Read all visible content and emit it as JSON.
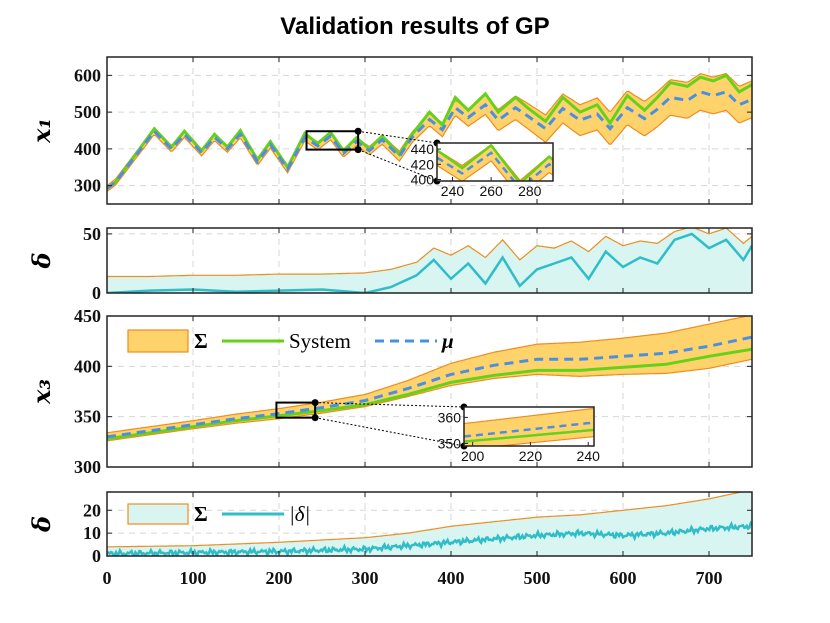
{
  "title": "Validation results of GP",
  "colors": {
    "band_fill": "#ffd36b",
    "band_edge": "#f08c1e",
    "system": "#66d11a",
    "mean": "#4a90e2",
    "delta_fill": "#d8f5f1",
    "delta_line": "#2fbdc8",
    "axis": "#222222",
    "grid": "#d6d6d6"
  },
  "x_axis": {
    "ticks": [
      0,
      100,
      200,
      300,
      400,
      500,
      600,
      700
    ],
    "tick_labels": [
      "0",
      "100",
      "200",
      "300",
      "400",
      "500",
      "600",
      "700"
    ],
    "xlim": [
      0,
      750
    ]
  },
  "chart_data": [
    {
      "type": "area",
      "id": "x1",
      "ylabel": "x₁",
      "ylim": [
        250,
        650
      ],
      "yticks": [
        300,
        400,
        500,
        600
      ],
      "ytick_labels": [
        "300",
        "400",
        "500",
        "600"
      ],
      "series": [
        {
          "name": "System",
          "x": [
            0,
            10,
            55,
            75,
            90,
            110,
            125,
            140,
            155,
            175,
            190,
            210,
            230,
            245,
            260,
            275,
            290,
            305,
            320,
            340,
            355,
            375,
            390,
            405,
            420,
            440,
            455,
            475,
            490,
            510,
            530,
            550,
            570,
            585,
            605,
            625,
            640,
            655,
            675,
            690,
            705,
            720,
            735,
            750
          ],
          "y": [
            292,
            310,
            455,
            405,
            448,
            395,
            440,
            405,
            450,
            370,
            420,
            350,
            442,
            415,
            445,
            395,
            430,
            400,
            435,
            385,
            440,
            500,
            465,
            540,
            505,
            550,
            500,
            540,
            510,
            475,
            540,
            500,
            520,
            470,
            545,
            505,
            540,
            580,
            570,
            595,
            585,
            600,
            555,
            575
          ]
        },
        {
          "name": "μ",
          "x": [
            0,
            10,
            55,
            75,
            90,
            110,
            125,
            140,
            155,
            175,
            190,
            210,
            230,
            245,
            260,
            275,
            290,
            305,
            320,
            340,
            355,
            375,
            390,
            405,
            420,
            440,
            455,
            475,
            490,
            510,
            530,
            550,
            570,
            585,
            605,
            625,
            640,
            655,
            675,
            690,
            705,
            720,
            735,
            750
          ],
          "y": [
            292,
            310,
            448,
            400,
            440,
            390,
            432,
            400,
            440,
            365,
            412,
            345,
            432,
            408,
            435,
            388,
            420,
            395,
            425,
            380,
            432,
            480,
            452,
            512,
            485,
            520,
            478,
            512,
            488,
            455,
            510,
            478,
            495,
            455,
            512,
            482,
            508,
            540,
            532,
            555,
            545,
            555,
            520,
            535
          ]
        }
      ],
      "band": {
        "name": "Σ",
        "x": [
          0,
          100,
          200,
          300,
          350,
          400,
          450,
          500,
          550,
          600,
          650,
          700,
          750
        ],
        "halfwidth": [
          8,
          9,
          10,
          11,
          14,
          20,
          28,
          36,
          42,
          46,
          48,
          50,
          50
        ]
      },
      "inset": {
        "xlim": [
          232,
          292
        ],
        "ylim": [
          398,
          448
        ],
        "xticks": [
          240,
          260,
          280
        ],
        "xtick_labels": [
          "240",
          "260",
          "280"
        ],
        "yticks": [
          400,
          420,
          440
        ],
        "ytick_labels": [
          "400",
          "420",
          "440"
        ]
      }
    },
    {
      "type": "area",
      "id": "delta1",
      "ylabel": "δ",
      "ylim": [
        0,
        55
      ],
      "yticks": [
        0,
        50
      ],
      "ytick_labels": [
        "0",
        "50"
      ],
      "series": [
        {
          "name": "Σ",
          "x": [
            0,
            50,
            100,
            150,
            200,
            250,
            300,
            330,
            360,
            380,
            400,
            420,
            440,
            460,
            480,
            500,
            520,
            540,
            560,
            580,
            600,
            620,
            640,
            660,
            680,
            700,
            720,
            740,
            750
          ],
          "y": [
            14,
            14,
            15,
            15,
            16,
            16,
            17,
            20,
            26,
            38,
            32,
            40,
            30,
            45,
            28,
            40,
            38,
            44,
            35,
            48,
            40,
            44,
            42,
            52,
            56,
            50,
            55,
            42,
            48
          ]
        },
        {
          "name": "|δ|",
          "x": [
            0,
            50,
            100,
            150,
            200,
            250,
            300,
            330,
            360,
            380,
            400,
            420,
            440,
            460,
            480,
            500,
            520,
            540,
            560,
            580,
            600,
            620,
            640,
            660,
            680,
            700,
            720,
            740,
            750
          ],
          "y": [
            0,
            2,
            3,
            1,
            2,
            3,
            0,
            5,
            15,
            28,
            12,
            25,
            8,
            30,
            6,
            20,
            25,
            30,
            12,
            35,
            22,
            30,
            25,
            45,
            50,
            38,
            45,
            28,
            40
          ]
        }
      ]
    },
    {
      "type": "area",
      "id": "x3",
      "ylabel": "x₃",
      "ylim": [
        300,
        450
      ],
      "yticks": [
        300,
        350,
        400,
        450
      ],
      "ytick_labels": [
        "300",
        "350",
        "400",
        "450"
      ],
      "series": [
        {
          "name": "System",
          "x": [
            0,
            50,
            100,
            150,
            200,
            250,
            300,
            350,
            400,
            450,
            500,
            550,
            600,
            650,
            700,
            750
          ],
          "y": [
            328,
            334,
            340,
            346,
            351,
            356,
            362,
            372,
            384,
            391,
            396,
            396,
            399,
            402,
            410,
            417
          ]
        },
        {
          "name": "μ",
          "x": [
            0,
            50,
            100,
            150,
            200,
            250,
            300,
            350,
            400,
            450,
            500,
            550,
            600,
            650,
            700,
            750
          ],
          "y": [
            330,
            336,
            342,
            348,
            353,
            359,
            366,
            378,
            392,
            401,
            407,
            407,
            410,
            413,
            420,
            429
          ]
        }
      ],
      "band": {
        "name": "Σ",
        "x": [
          0,
          100,
          200,
          300,
          350,
          400,
          450,
          500,
          550,
          600,
          650,
          700,
          750
        ],
        "halfwidth": [
          4,
          4,
          5,
          6,
          8,
          11,
          13,
          15,
          17,
          18,
          20,
          22,
          22
        ]
      },
      "inset": {
        "xlim": [
          197,
          242
        ],
        "ylim": [
          349,
          364
        ],
        "xticks": [
          200,
          220,
          240
        ],
        "xtick_labels": [
          "200",
          "220",
          "240"
        ],
        "yticks": [
          350,
          360
        ],
        "ytick_labels": [
          "350",
          "360"
        ]
      },
      "legend": {
        "placement": "top-left",
        "entries": [
          {
            "label": "Σ",
            "style": "band"
          },
          {
            "label": "System",
            "style": "solid-green"
          },
          {
            "label": "μ",
            "style": "dashed-blue"
          }
        ]
      }
    },
    {
      "type": "area",
      "id": "delta3",
      "ylabel": "δ",
      "ylim": [
        0,
        28
      ],
      "yticks": [
        0,
        10,
        20
      ],
      "ytick_labels": [
        "0",
        "10",
        "20"
      ],
      "series": [
        {
          "name": "Σ",
          "x": [
            0,
            100,
            200,
            300,
            350,
            400,
            450,
            500,
            550,
            600,
            650,
            700,
            750
          ],
          "y": [
            4,
            4.5,
            6,
            8,
            10,
            13,
            15,
            17,
            18,
            20,
            22,
            25,
            29
          ]
        },
        {
          "name": "|δ|",
          "x": [
            0,
            100,
            200,
            300,
            350,
            400,
            450,
            500,
            550,
            600,
            650,
            700,
            750
          ],
          "y": [
            1,
            1.5,
            2,
            3,
            4.5,
            6,
            7.5,
            9,
            10,
            9,
            10,
            12,
            13
          ]
        }
      ],
      "legend": {
        "placement": "top-left",
        "entries": [
          {
            "label": "Σ",
            "style": "delta-band"
          },
          {
            "label": "|δ|",
            "style": "solid-teal"
          }
        ]
      }
    }
  ]
}
